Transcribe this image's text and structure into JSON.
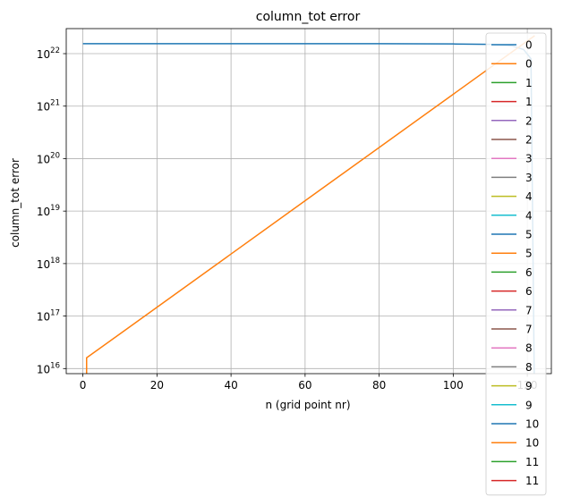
{
  "chart_data": {
    "type": "line",
    "title": "column_tot error",
    "xlabel": "n (grid point nr)",
    "ylabel": "column_tot error",
    "y_scale": "log",
    "grid": true,
    "legend_placement": "right",
    "xlim": [
      -4.5,
      126.5
    ],
    "ylim": [
      8000000000000000.0,
      3e+22
    ],
    "x_ticks": [
      0,
      20,
      40,
      60,
      80,
      100,
      120
    ],
    "x_tick_labels": [
      "0",
      "20",
      "40",
      "60",
      "80",
      "100",
      "120"
    ],
    "y_ticks": [
      1e+16,
      1e+17,
      1e+18,
      1e+19,
      1e+20,
      1e+21,
      1e+22
    ],
    "y_tick_labels": [
      {
        "base": "10",
        "exp": "16"
      },
      {
        "base": "10",
        "exp": "17"
      },
      {
        "base": "10",
        "exp": "18"
      },
      {
        "base": "10",
        "exp": "19"
      },
      {
        "base": "10",
        "exp": "20"
      },
      {
        "base": "10",
        "exp": "21"
      },
      {
        "base": "10",
        "exp": "22"
      }
    ],
    "series": [
      {
        "name": "0",
        "color": "#1f77b4",
        "x": [
          0,
          80,
          100,
          110,
          116,
          119,
          121,
          122
        ],
        "y": [
          1.55e+22,
          1.55e+22,
          1.53e+22,
          1.5e+22,
          1.4e+22,
          1.2e+22,
          8e+21,
          1000000000000000.0
        ]
      },
      {
        "name": "0",
        "color": "#ff7f0e",
        "x": [
          1,
          1,
          122
        ],
        "y": [
          1000000000000000.0,
          1.6e+16,
          2.2e+22
        ]
      },
      {
        "name": "1",
        "color": "#2ca02c"
      },
      {
        "name": "1",
        "color": "#d62728"
      },
      {
        "name": "2",
        "color": "#9467bd"
      },
      {
        "name": "2",
        "color": "#8c564b"
      },
      {
        "name": "3",
        "color": "#e377c2"
      },
      {
        "name": "3",
        "color": "#7f7f7f"
      },
      {
        "name": "4",
        "color": "#bcbd22"
      },
      {
        "name": "4",
        "color": "#17becf"
      },
      {
        "name": "5",
        "color": "#1f77b4"
      },
      {
        "name": "5",
        "color": "#ff7f0e"
      },
      {
        "name": "6",
        "color": "#2ca02c"
      },
      {
        "name": "6",
        "color": "#d62728"
      },
      {
        "name": "7",
        "color": "#9467bd"
      },
      {
        "name": "7",
        "color": "#8c564b"
      },
      {
        "name": "8",
        "color": "#e377c2"
      },
      {
        "name": "8",
        "color": "#7f7f7f"
      },
      {
        "name": "9",
        "color": "#bcbd22"
      },
      {
        "name": "9",
        "color": "#17becf"
      },
      {
        "name": "10",
        "color": "#1f77b4"
      },
      {
        "name": "10",
        "color": "#ff7f0e"
      },
      {
        "name": "11",
        "color": "#2ca02c"
      },
      {
        "name": "11",
        "color": "#d62728"
      }
    ]
  }
}
